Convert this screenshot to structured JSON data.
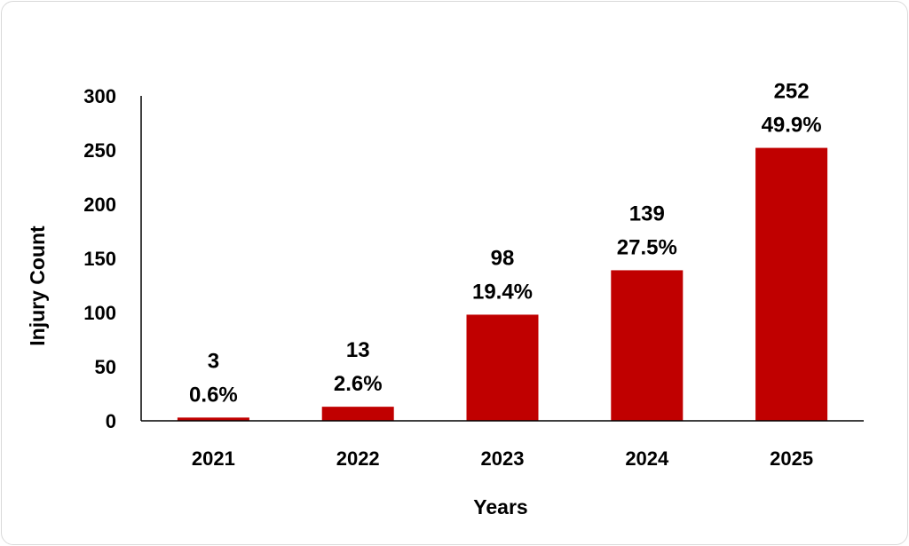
{
  "chart_data": {
    "type": "bar",
    "title": "",
    "xlabel": "Years",
    "ylabel": "Injury Count",
    "categories": [
      "2021",
      "2022",
      "2023",
      "2024",
      "2025"
    ],
    "values": [
      3,
      13,
      98,
      139,
      252
    ],
    "percent_labels": [
      "0.6%",
      "2.6%",
      "19.4%",
      "27.5%",
      "49.9%"
    ],
    "ylim": [
      0,
      300
    ],
    "yticks": [
      0,
      50,
      100,
      150,
      200,
      250,
      300
    ],
    "grid": false,
    "legend": "none",
    "bar_color": "#c00000"
  }
}
